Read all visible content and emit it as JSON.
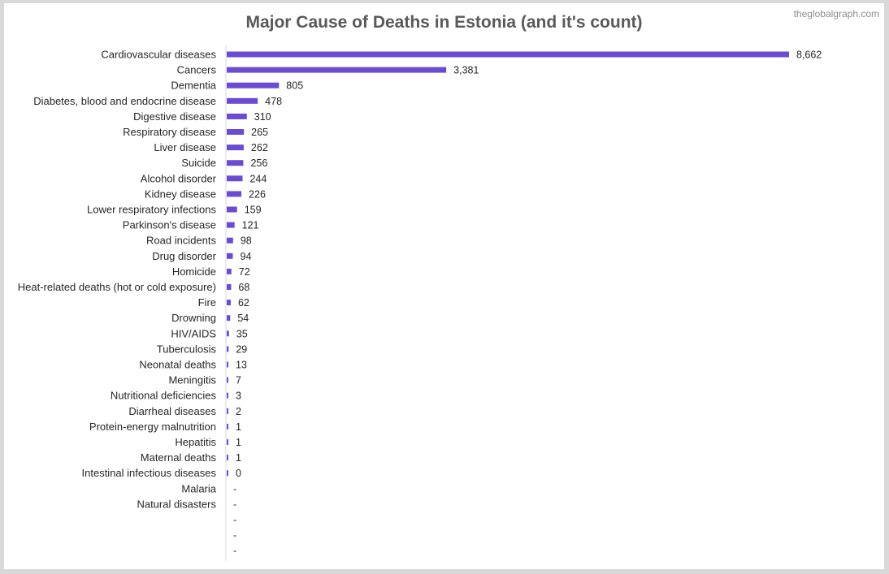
{
  "page": {
    "title": "Major Cause of Deaths in Estonia (and it's count)",
    "watermark": "theglobalgraph.com"
  },
  "colors": {
    "bar": "#6a4bd1",
    "text": "#262626",
    "axis": "#d9d9d9",
    "title": "#595959"
  },
  "chart_data": {
    "type": "bar",
    "orientation": "horizontal",
    "title": "Major Cause of Deaths in Estonia (and it's count)",
    "categories": [
      "Cardiovascular diseases",
      "Cancers",
      "Dementia",
      "Diabetes, blood and endocrine disease",
      "Digestive disease",
      "Respiratory disease",
      "Liver disease",
      "Suicide",
      "Alcohol disorder",
      "Kidney disease",
      "Lower respiratory infections",
      "Parkinson's disease",
      "Road incidents",
      "Drug disorder",
      "Homicide",
      "Heat-related deaths (hot or cold exposure)",
      "Fire",
      "Drowning",
      "HIV/AIDS",
      "Tuberculosis",
      "Neonatal deaths",
      "Meningitis",
      "Nutritional deficiencies",
      "Diarrheal diseases",
      "Protein-energy malnutrition",
      "Hepatitis",
      "Maternal deaths",
      "Intestinal infectious diseases",
      "Malaria",
      "Natural disasters",
      "",
      "",
      ""
    ],
    "values": [
      8662,
      3381,
      805,
      478,
      310,
      265,
      262,
      256,
      244,
      226,
      159,
      121,
      98,
      94,
      72,
      68,
      62,
      54,
      35,
      29,
      13,
      7,
      3,
      2,
      1,
      1,
      1,
      0,
      null,
      null,
      null,
      null,
      null
    ],
    "data_labels": [
      "8,662",
      "3,381",
      "805",
      "478",
      "310",
      "265",
      "262",
      "256",
      "244",
      "226",
      "159",
      "121",
      "98",
      "94",
      "72",
      "68",
      "62",
      "54",
      "35",
      "29",
      "13",
      "7",
      "3",
      "2",
      "1",
      "1",
      "1",
      "0",
      "-",
      "-",
      "-",
      "-",
      "-"
    ],
    "xlim": [
      0,
      8662
    ],
    "grid": false,
    "legend": "none"
  }
}
